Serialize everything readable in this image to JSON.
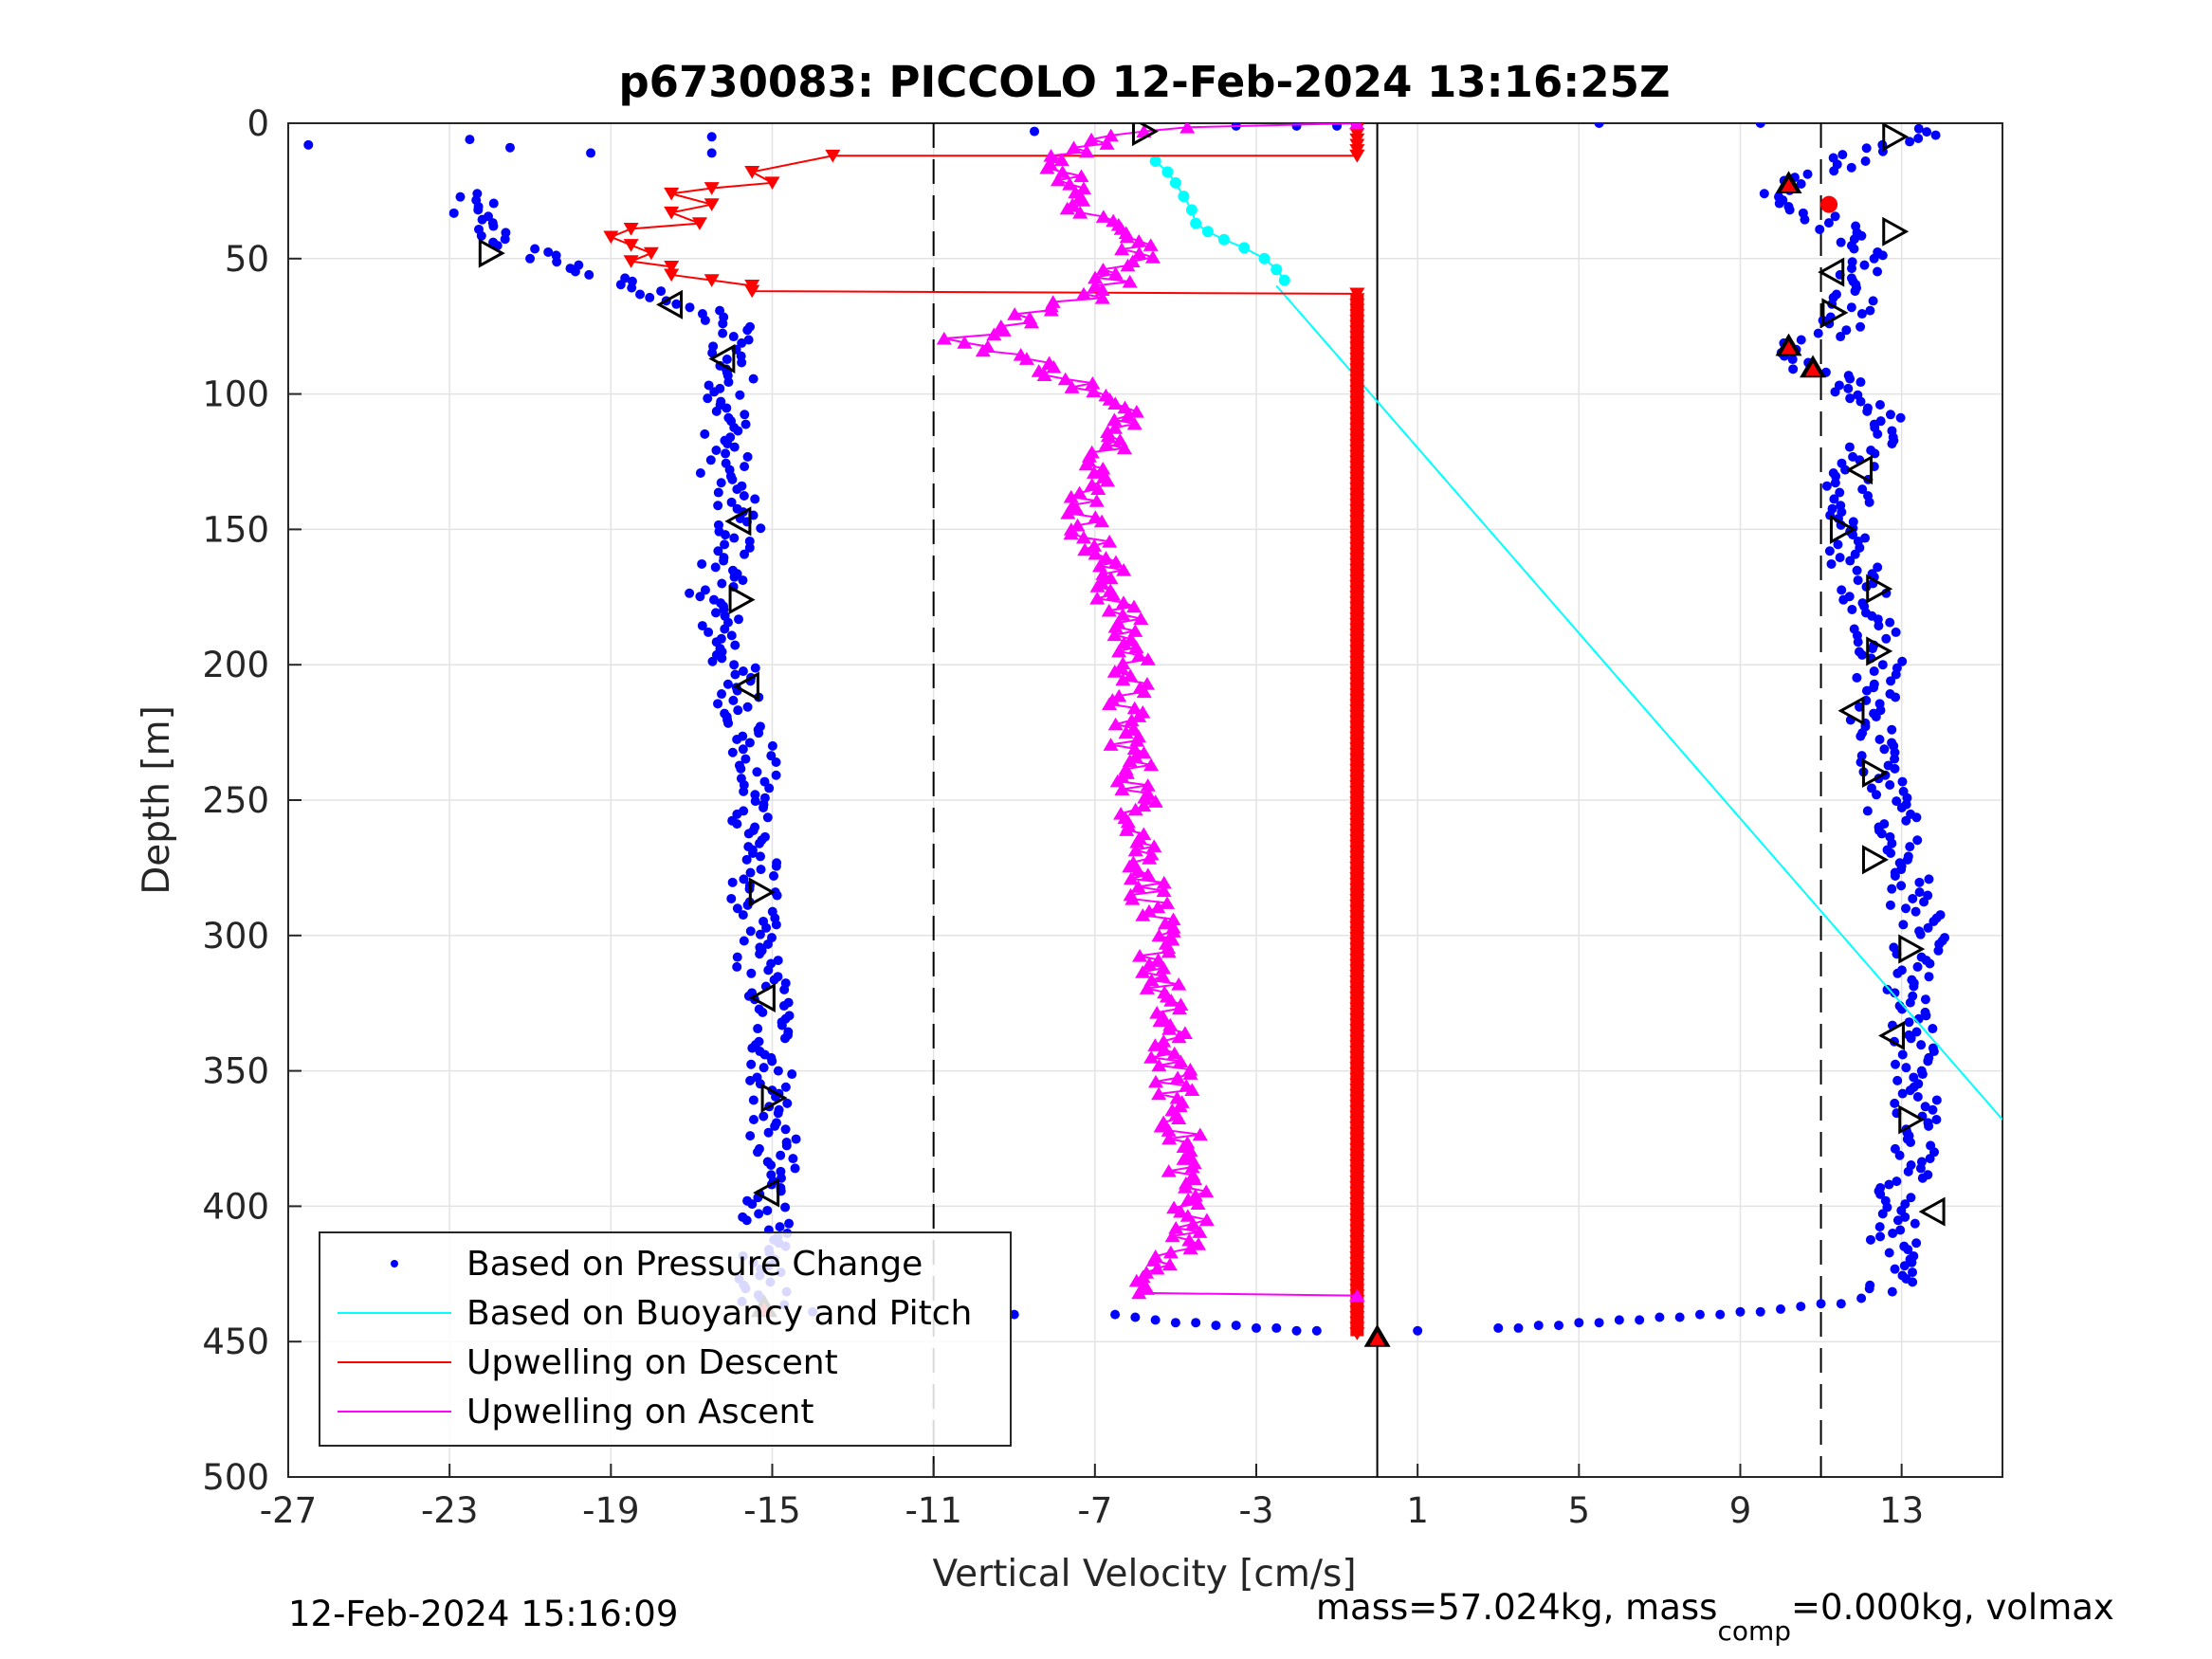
{
  "chart_data": {
    "type": "scatter",
    "title": "p6730083: PICCOLO 12-Feb-2024 13:16:25Z",
    "xlabel": "Vertical Velocity [cm/s]",
    "ylabel": "Depth [m]",
    "xlim": [
      -27,
      15.5
    ],
    "ylim": [
      0,
      500
    ],
    "y_reversed": true,
    "xticks": [
      "-27",
      "-23",
      "-19",
      "-15",
      "-11",
      "-7",
      "-3",
      "1",
      "5",
      "9",
      "13"
    ],
    "yticks": [
      "0",
      "50",
      "100",
      "150",
      "200",
      "250",
      "300",
      "350",
      "400",
      "450",
      "500"
    ],
    "grid": true,
    "legend_position": "bottom-left",
    "reference_lines": [
      {
        "x": -11,
        "style": "dashed",
        "color": "#000000"
      },
      {
        "x": 11,
        "style": "dashed",
        "color": "#000000"
      },
      {
        "x": 0,
        "style": "solid",
        "color": "#000000"
      }
    ],
    "series": [
      {
        "name": "Based on Pressure Change",
        "color": "#0000ff",
        "marker": "dot",
        "descent_anchors": [
          [
            -22.5,
            35
          ],
          [
            -21.5,
            45
          ],
          [
            -19,
            58
          ],
          [
            -17.5,
            65
          ],
          [
            -16,
            75
          ],
          [
            -16,
            100
          ],
          [
            -16.2,
            130
          ],
          [
            -15.8,
            150
          ],
          [
            -16.5,
            175
          ],
          [
            -16,
            200
          ],
          [
            -15.5,
            230
          ],
          [
            -15.4,
            270
          ],
          [
            -15.5,
            300
          ],
          [
            -15,
            330
          ],
          [
            -15,
            360
          ],
          [
            -15,
            390
          ],
          [
            -15.3,
            420
          ],
          [
            -15.2,
            438
          ]
        ],
        "descent_spread": 0.6,
        "surface_points": [
          [
            -26.5,
            8
          ],
          [
            -22.5,
            6
          ],
          [
            -21.5,
            9
          ],
          [
            -19.5,
            11
          ],
          [
            -16.5,
            5
          ],
          [
            -16.5,
            11
          ],
          [
            -8.5,
            3
          ],
          [
            -3.5,
            1
          ],
          [
            -2,
            1
          ],
          [
            -1,
            1
          ],
          [
            5.5,
            0
          ],
          [
            9.5,
            0
          ]
        ],
        "bottom_points": [
          [
            -14,
            439
          ],
          [
            -9,
            440
          ],
          [
            -6.5,
            440
          ],
          [
            -6,
            441
          ],
          [
            -5.5,
            442
          ],
          [
            -5,
            443
          ],
          [
            -4.5,
            443
          ],
          [
            -4,
            444
          ],
          [
            -3.5,
            444
          ],
          [
            -3,
            445
          ],
          [
            -2.5,
            445
          ],
          [
            -2,
            446
          ],
          [
            -1.5,
            446
          ],
          [
            1,
            446
          ],
          [
            3,
            445
          ],
          [
            3.5,
            445
          ],
          [
            4,
            444
          ],
          [
            4.5,
            444
          ],
          [
            5,
            443
          ],
          [
            5.5,
            443
          ],
          [
            6,
            442
          ],
          [
            6.5,
            442
          ],
          [
            7,
            441
          ],
          [
            7.5,
            441
          ],
          [
            8,
            440
          ],
          [
            8.5,
            440
          ],
          [
            9,
            439
          ],
          [
            9.5,
            439
          ],
          [
            10,
            438
          ],
          [
            10.5,
            437
          ],
          [
            11,
            436
          ],
          [
            11.5,
            436
          ],
          [
            12,
            434
          ]
        ],
        "ascent_anchors": [
          [
            12.8,
            430
          ],
          [
            12.8,
            400
          ],
          [
            13.3,
            380
          ],
          [
            13.4,
            350
          ],
          [
            13,
            320
          ],
          [
            13.5,
            300
          ],
          [
            13,
            270
          ],
          [
            12.5,
            240
          ],
          [
            12.3,
            220
          ],
          [
            12.5,
            190
          ],
          [
            12,
            170
          ],
          [
            11.5,
            150
          ],
          [
            11.8,
            130
          ],
          [
            12.5,
            110
          ],
          [
            11.5,
            95
          ],
          [
            10,
            85
          ],
          [
            11.5,
            75
          ],
          [
            12,
            60
          ],
          [
            12.2,
            45
          ],
          [
            11,
            35
          ],
          [
            10,
            25
          ],
          [
            12,
            12
          ],
          [
            13.5,
            3
          ]
        ],
        "ascent_spread": 0.6
      },
      {
        "name": "Based on Buoyancy and Pitch",
        "color": "#00ffff",
        "marker": "line",
        "line": [
          [
            -2.5,
            60
          ],
          [
            15.5,
            368
          ]
        ],
        "surface_points": [
          [
            -5.5,
            14
          ],
          [
            -5.2,
            18
          ],
          [
            -5,
            22
          ],
          [
            -4.8,
            27
          ],
          [
            -4.6,
            32
          ],
          [
            -4.5,
            37
          ],
          [
            -4.2,
            40
          ],
          [
            -3.8,
            43
          ],
          [
            -3.3,
            46
          ],
          [
            -2.8,
            50
          ],
          [
            -2.5,
            54
          ],
          [
            -2.3,
            58
          ]
        ]
      },
      {
        "name": "Upwelling on Descent",
        "color": "#ff0000",
        "marker": "triangle-down",
        "shallow_points": [
          [
            -0.5,
            12
          ],
          [
            -13.5,
            12
          ],
          [
            -15.5,
            18
          ],
          [
            -15,
            22
          ],
          [
            -16.5,
            24
          ],
          [
            -17.5,
            26
          ],
          [
            -16.5,
            30
          ],
          [
            -17.5,
            33
          ],
          [
            -16.8,
            37
          ],
          [
            -18.5,
            39
          ],
          [
            -19,
            42
          ],
          [
            -18.5,
            45
          ],
          [
            -18,
            48
          ],
          [
            -18.5,
            51
          ],
          [
            -17.5,
            53
          ],
          [
            -17.5,
            56
          ],
          [
            -16.5,
            58
          ],
          [
            -15.5,
            60
          ],
          [
            -15.5,
            62
          ],
          [
            -0.5,
            63
          ]
        ],
        "vertical_x": -0.5,
        "vertical_range": [
          63,
          448
        ]
      },
      {
        "name": "Upwelling on Ascent",
        "color": "#ff00ff",
        "marker": "triangle-up",
        "anchors": [
          [
            -0.5,
            0
          ],
          [
            -5.5,
            2
          ],
          [
            -6.5,
            5
          ],
          [
            -7.5,
            10
          ],
          [
            -8,
            15
          ],
          [
            -7.5,
            20
          ],
          [
            -7.2,
            25
          ],
          [
            -7.6,
            30
          ],
          [
            -6,
            40
          ],
          [
            -6,
            50
          ],
          [
            -6.5,
            55
          ],
          [
            -6.6,
            62
          ],
          [
            -8.5,
            70
          ],
          [
            -9,
            75
          ],
          [
            -10.5,
            80
          ],
          [
            -9,
            85
          ],
          [
            -7.5,
            95
          ],
          [
            -6,
            110
          ],
          [
            -7,
            130
          ],
          [
            -7.3,
            145
          ],
          [
            -6.6,
            170
          ],
          [
            -6,
            200
          ],
          [
            -6.3,
            215
          ],
          [
            -6,
            240
          ],
          [
            -5.8,
            265
          ],
          [
            -5.5,
            300
          ],
          [
            -5.2,
            340
          ],
          [
            -4.8,
            380
          ],
          [
            -4.5,
            410
          ],
          [
            -5.8,
            425
          ],
          [
            -6,
            432
          ]
        ],
        "spread": 0.5,
        "tail": [
          [
            -6,
            432
          ],
          [
            -0.5,
            433
          ]
        ]
      },
      {
        "name": "direction markers",
        "color": "#000000",
        "marker": "triangle-outline",
        "points": [
          [
            -5.8,
            3,
            "r"
          ],
          [
            12.8,
            5,
            "r"
          ],
          [
            -22,
            48,
            "r"
          ],
          [
            -17.5,
            67,
            "l"
          ],
          [
            -16.2,
            87,
            "l"
          ],
          [
            -15.8,
            147,
            "l"
          ],
          [
            -15.8,
            176,
            "r"
          ],
          [
            -15.6,
            208,
            "l"
          ],
          [
            -15.3,
            284,
            "r"
          ],
          [
            -15.2,
            323,
            "l"
          ],
          [
            -15,
            360,
            "r"
          ],
          [
            -15.1,
            395,
            "l"
          ],
          [
            12.8,
            40,
            "r"
          ],
          [
            11.3,
            55,
            "l"
          ],
          [
            11.3,
            70,
            "r"
          ],
          [
            12,
            128,
            "l"
          ],
          [
            11.5,
            150,
            "r"
          ],
          [
            12.4,
            172,
            "r"
          ],
          [
            12.4,
            195,
            "r"
          ],
          [
            11.8,
            217,
            "l"
          ],
          [
            12.3,
            240,
            "r"
          ],
          [
            12.3,
            272,
            "r"
          ],
          [
            13.2,
            305,
            "r"
          ],
          [
            12.8,
            337,
            "l"
          ],
          [
            13.2,
            368,
            "r"
          ],
          [
            13.8,
            402,
            "l"
          ]
        ]
      },
      {
        "name": "filled markers",
        "color": "#ff0000",
        "marker": "triangle-filled",
        "points": [
          [
            10.2,
            22
          ],
          [
            10.2,
            82
          ],
          [
            10.8,
            90
          ],
          [
            -15.2,
            437
          ],
          [
            0,
            448
          ],
          [
            11.2,
            30
          ]
        ]
      }
    ],
    "legend": [
      "Based on Pressure Change",
      "Based on Buoyancy and Pitch",
      "Upwelling on Descent",
      "Upwelling on Ascent"
    ]
  },
  "footer": {
    "timestamp": "12-Feb-2024 15:16:09",
    "mass_text": "mass=57.024kg, mass",
    "mass_sub": "comp",
    "mass_rest": "=0.000kg, volmax"
  }
}
